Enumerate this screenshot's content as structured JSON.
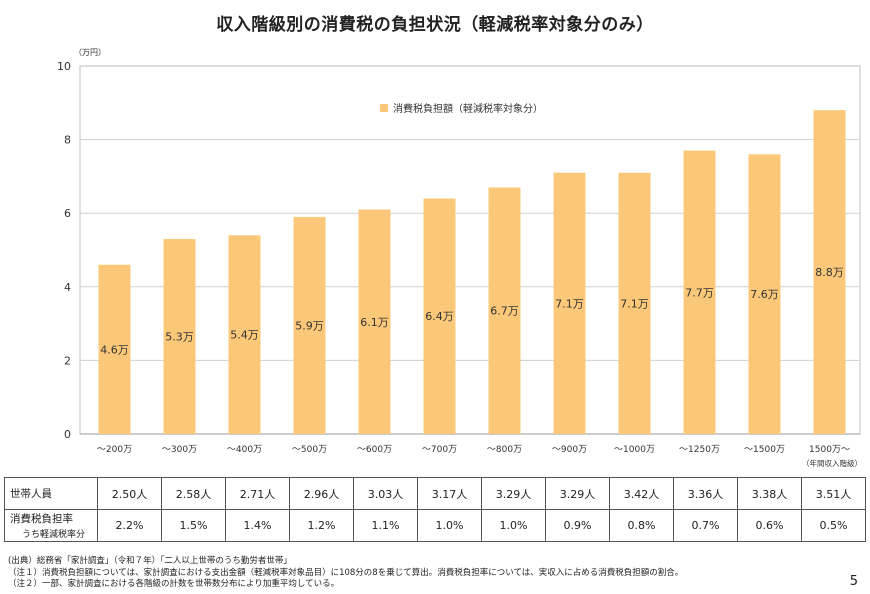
{
  "title": "収入階級別の消費税の負担状況（軽減税率対象分のみ）",
  "chart_data": {
    "type": "bar",
    "unit_label": "（万円）",
    "x_axis_note": "（年間収入階級）",
    "legend": "消費税負担額（軽減税率対象分）",
    "legend_position": "top-center",
    "categories": [
      "～200万",
      "～300万",
      "～400万",
      "～500万",
      "～600万",
      "～700万",
      "～800万",
      "～900万",
      "～1000万",
      "～1250万",
      "～1500万",
      "1500万～"
    ],
    "values": [
      4.6,
      5.3,
      5.4,
      5.9,
      6.1,
      6.4,
      6.7,
      7.1,
      7.1,
      7.7,
      7.6,
      8.8
    ],
    "data_labels": [
      "4.6万",
      "5.3万",
      "5.4万",
      "5.9万",
      "6.1万",
      "6.4万",
      "6.7万",
      "7.1万",
      "7.1万",
      "7.7万",
      "7.6万",
      "8.8万"
    ],
    "ylim": [
      0,
      10
    ],
    "yticks": [
      0,
      2,
      4,
      6,
      8,
      10
    ],
    "grid": true,
    "bar_color": "#FAC878"
  },
  "table": {
    "rows": [
      {
        "label": "世帯人員",
        "sublabel": "",
        "cells": [
          "2.50人",
          "2.58人",
          "2.71人",
          "2.96人",
          "3.03人",
          "3.17人",
          "3.29人",
          "3.29人",
          "3.42人",
          "3.36人",
          "3.38人",
          "3.51人"
        ]
      },
      {
        "label": "消費税負担率",
        "sublabel": "うち軽減税率分",
        "cells": [
          "2.2%",
          "1.5%",
          "1.4%",
          "1.2%",
          "1.1%",
          "1.0%",
          "1.0%",
          "0.9%",
          "0.8%",
          "0.7%",
          "0.6%",
          "0.5%"
        ]
      }
    ]
  },
  "notes": [
    "(出典）総務省「家計調査」（令和７年）「二人以上世帯のうち勤労者世帯」",
    "（注１）消費税負担額については、家計調査における支出金額（軽減税率対象品目）に108分の8を乗じて算出。消費税負担率については、実収入に占める消費税負担額の割合。",
    "（注２）一部、家計調査における各階級の計数を世帯数分布により加重平均している。"
  ],
  "page_number": "5"
}
